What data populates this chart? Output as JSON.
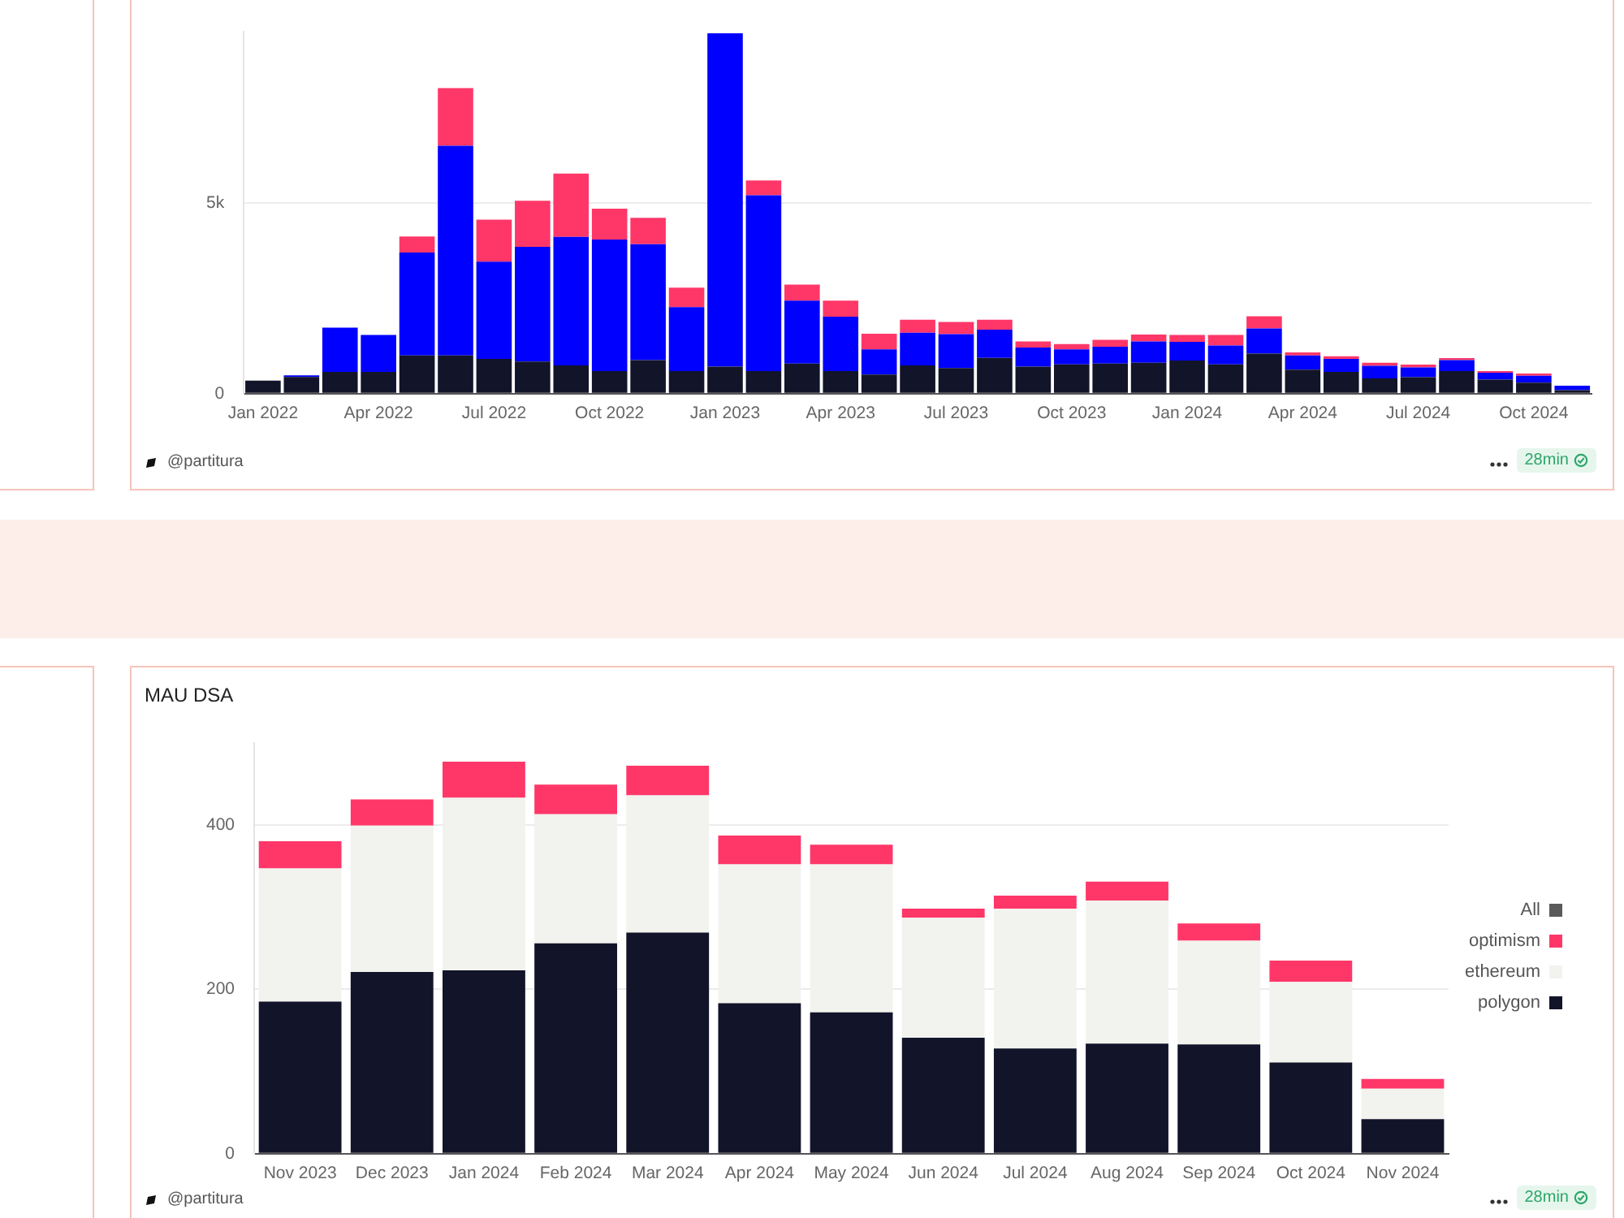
{
  "chart_data": [
    {
      "type": "bar",
      "stacked": true,
      "grid": "y",
      "legend": false,
      "categories": [
        "Jan 2022",
        null,
        null,
        "Apr 2022",
        null,
        null,
        "Jul 2022",
        null,
        null,
        "Oct 2022",
        null,
        null,
        "Jan 2023",
        null,
        null,
        "Apr 2023",
        null,
        null,
        "Jul 2023",
        null,
        null,
        "Oct 2023",
        null,
        null,
        "Jan 2024",
        null,
        null,
        "Apr 2024",
        null,
        null,
        "Jul 2024",
        null,
        null,
        "Oct 2024",
        null
      ],
      "series": [
        {
          "color": "#121429",
          "values": [
            340,
            440,
            570,
            570,
            1000,
            1000,
            910,
            840,
            740,
            590,
            880,
            590,
            710,
            590,
            790,
            590,
            500,
            740,
            670,
            940,
            710,
            770,
            790,
            810,
            870,
            770,
            1050,
            630,
            570,
            400,
            430,
            590,
            370,
            290,
            90
          ]
        },
        {
          "color": "#0000ff",
          "values": [
            null,
            40,
            1160,
            970,
            2700,
            5500,
            2550,
            3010,
            3370,
            3450,
            3040,
            1680,
            8740,
            4610,
            1650,
            1430,
            660,
            860,
            890,
            740,
            500,
            390,
            440,
            560,
            490,
            490,
            660,
            370,
            340,
            330,
            260,
            290,
            180,
            180,
            120
          ]
        },
        {
          "color": "#ff3768",
          "values": [
            null,
            null,
            null,
            null,
            420,
            1510,
            1100,
            1210,
            1660,
            810,
            690,
            510,
            null,
            390,
            420,
            420,
            410,
            340,
            320,
            260,
            160,
            140,
            180,
            180,
            180,
            280,
            320,
            80,
            70,
            80,
            70,
            50,
            40,
            60,
            null
          ]
        }
      ],
      "ylim": [
        0,
        9500
      ],
      "yticks": [
        0,
        {
          "value": 5000,
          "label": "5k"
        }
      ],
      "annotations": [
        "@partitura",
        "28min"
      ]
    },
    {
      "type": "bar",
      "stacked": true,
      "grid": "y",
      "legend": "right",
      "title": "MAU DSA",
      "categories": [
        "Nov 2023",
        "Dec 2023",
        "Jan 2024",
        "Feb 2024",
        "Mar 2024",
        "Apr 2024",
        "May 2024",
        "Jun 2024",
        "Jul 2024",
        "Aug 2024",
        "Sep 2024",
        "Oct 2024",
        "Nov 2024"
      ],
      "series": [
        {
          "name": "polygon",
          "color": "#121429",
          "values": [
            185,
            221,
            223,
            256,
            269,
            183,
            172,
            141,
            128,
            134,
            133,
            111,
            42
          ]
        },
        {
          "name": "ethereum",
          "color": "#f2f2ee",
          "values": [
            162,
            178,
            210,
            157,
            167,
            169,
            180,
            146,
            170,
            174,
            126,
            98,
            37
          ]
        },
        {
          "name": "optimism",
          "color": "#ff3768",
          "values": [
            33,
            32,
            44,
            36,
            36,
            35,
            24,
            11,
            16,
            23,
            21,
            26,
            12
          ]
        },
        {
          "name": "All",
          "color": "#5a5a5a",
          "values": [
            null,
            null,
            null,
            null,
            null,
            null,
            null,
            null,
            null,
            null,
            null,
            null,
            null
          ]
        }
      ],
      "ylim": [
        0,
        500
      ],
      "yticks": [
        0,
        200,
        400
      ],
      "annotations": [
        "@partitura",
        "28min"
      ]
    }
  ]
}
